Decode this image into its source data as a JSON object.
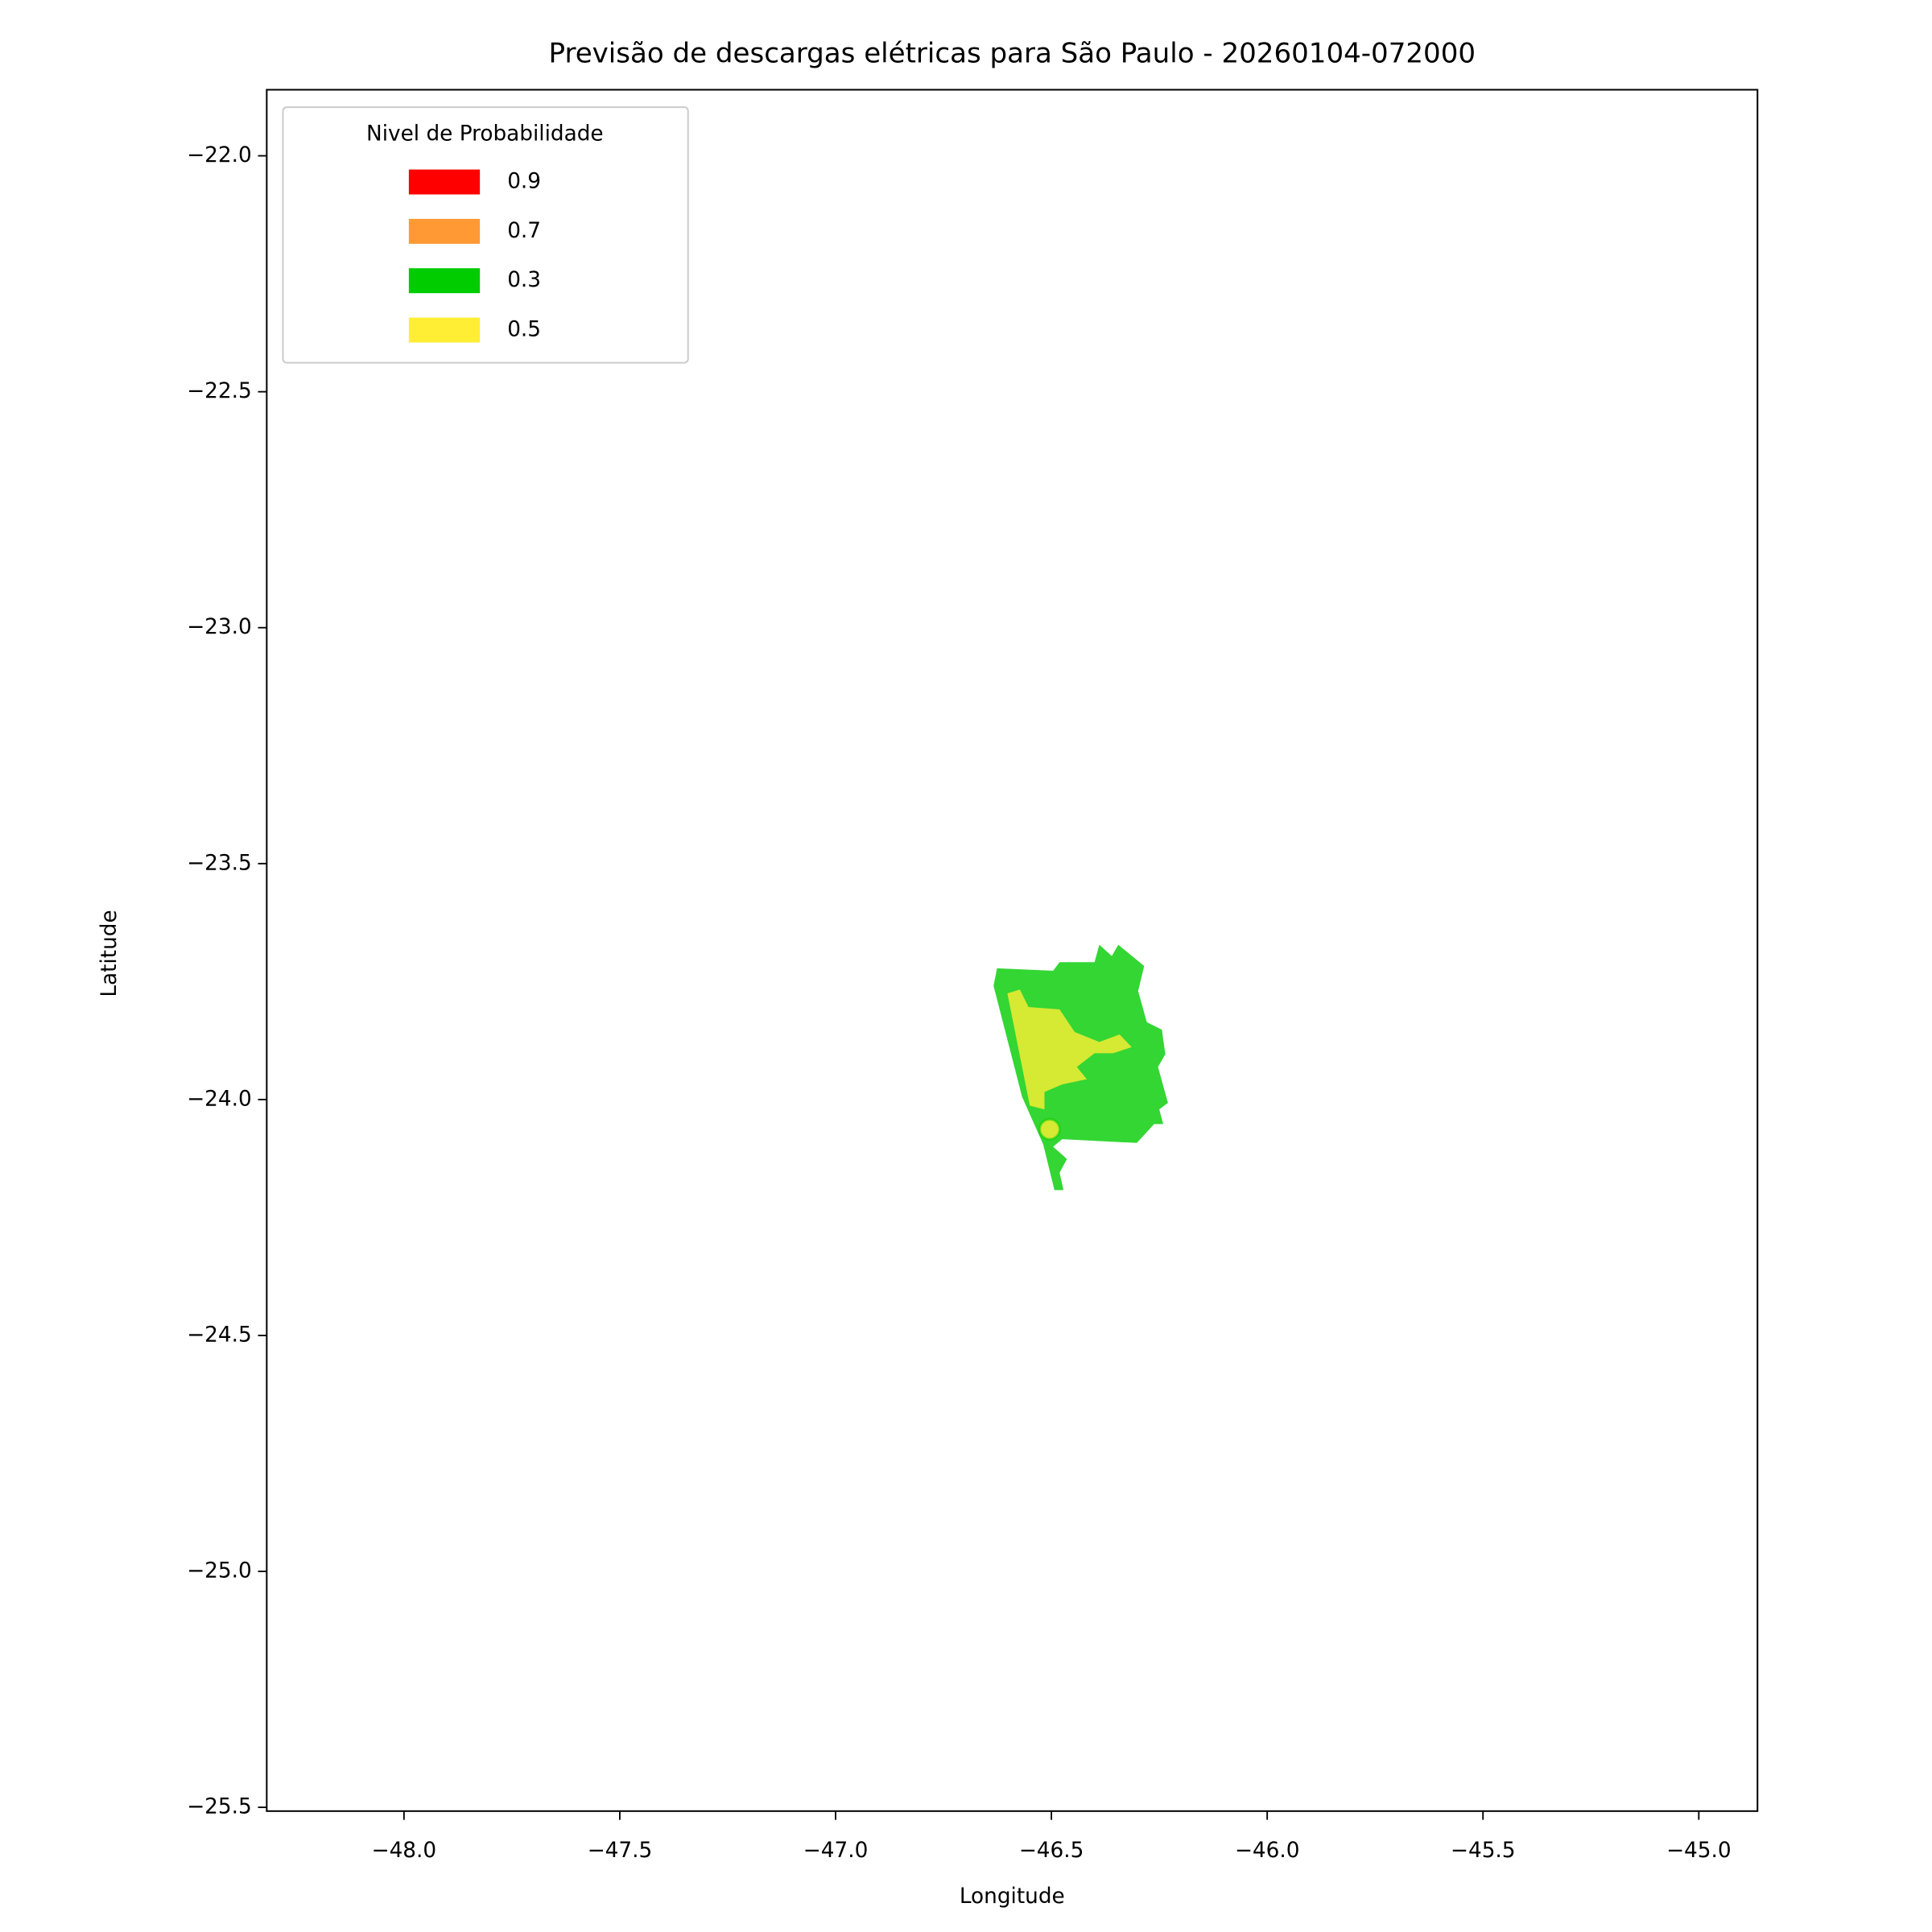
{
  "chart_data": {
    "type": "map",
    "title": "Previsão de descargas elétricas para São Paulo - 20260104-072000",
    "xlabel": "Longitude",
    "ylabel": "Latitude",
    "xlim": [
      -48.318,
      -44.864
    ],
    "ylim": [
      -25.508,
      -21.86
    ],
    "xticks": [
      {
        "value": -48.0,
        "label": "−48.0"
      },
      {
        "value": -47.5,
        "label": "−47.5"
      },
      {
        "value": -47.0,
        "label": "−47.0"
      },
      {
        "value": -46.5,
        "label": "−46.5"
      },
      {
        "value": -46.0,
        "label": "−46.0"
      },
      {
        "value": -45.5,
        "label": "−45.5"
      },
      {
        "value": -45.0,
        "label": "−45.0"
      }
    ],
    "yticks": [
      {
        "value": -22.0,
        "label": "−22.0"
      },
      {
        "value": -22.5,
        "label": "−22.5"
      },
      {
        "value": -23.0,
        "label": "−23.0"
      },
      {
        "value": -23.5,
        "label": "−23.5"
      },
      {
        "value": -24.0,
        "label": "−24.0"
      },
      {
        "value": -24.5,
        "label": "−24.5"
      },
      {
        "value": -25.0,
        "label": "−25.0"
      },
      {
        "value": -25.5,
        "label": "−25.5"
      }
    ],
    "legend_title": "Nivel de Probabilidade",
    "legend": "upper left",
    "opacity": 0.8,
    "series": [
      {
        "name": "0.9",
        "color": "#ff0000",
        "polygons": []
      },
      {
        "name": "0.7",
        "color": "#ff9933",
        "polygons": []
      },
      {
        "name": "0.3",
        "color": "#00cc00",
        "polygons": [
          {
            "lon": [
              -46.626,
              -46.496,
              -46.481,
              -46.4,
              -46.389,
              -46.36,
              -46.345,
              -46.285,
              -46.299,
              -46.279,
              -46.244,
              -46.236,
              -46.253,
              -46.23,
              -46.25,
              -46.241,
              -46.262,
              -46.302,
              -46.475,
              -46.496,
              -46.464,
              -46.481,
              -46.472,
              -46.493,
              -46.519,
              -46.568,
              -46.634
            ],
            "lat": [
              -23.722,
              -23.727,
              -23.709,
              -23.709,
              -23.672,
              -23.696,
              -23.672,
              -23.717,
              -23.77,
              -23.836,
              -23.852,
              -23.904,
              -23.931,
              -24.007,
              -24.021,
              -24.052,
              -24.052,
              -24.092,
              -24.084,
              -24.1,
              -24.126,
              -24.155,
              -24.192,
              -24.192,
              -24.095,
              -23.994,
              -23.759
            ]
          }
        ]
      },
      {
        "name": "0.5",
        "color": "#ffee33",
        "polygons": [
          {
            "lon": [
              -46.602,
              -46.573,
              -46.553,
              -46.481,
              -46.446,
              -46.389,
              -46.342,
              -46.314,
              -46.357,
              -46.4,
              -46.441,
              -46.418,
              -46.475,
              -46.516,
              -46.516,
              -46.55
            ],
            "lat": [
              -23.775,
              -23.767,
              -23.804,
              -23.809,
              -23.857,
              -23.878,
              -23.862,
              -23.889,
              -23.902,
              -23.902,
              -23.931,
              -23.957,
              -23.968,
              -23.984,
              -24.021,
              -24.013
            ]
          }
        ],
        "points": {
          "lon": [
            -46.504
          ],
          "lat": [
            -24.063
          ]
        }
      }
    ]
  }
}
